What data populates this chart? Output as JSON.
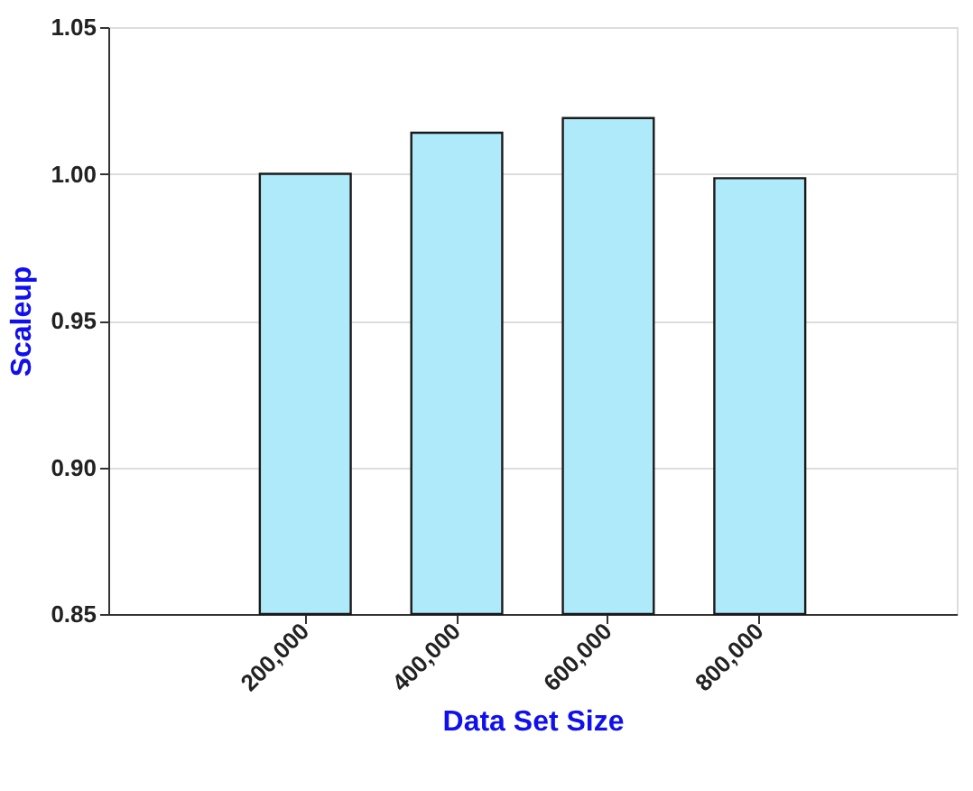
{
  "chart_data": {
    "type": "bar",
    "xlabel": "Data Set Size",
    "ylabel": "Scaleup",
    "categories": [
      "200,000",
      "400,000",
      "600,000",
      "800,000"
    ],
    "values": [
      1.0,
      1.014,
      1.019,
      0.9985
    ],
    "color": "#aeeafa",
    "ylim": [
      0.85,
      1.05
    ],
    "yticks": [
      {
        "value": 0.85,
        "label": "0.85"
      },
      {
        "value": 0.9,
        "label": "0.90"
      },
      {
        "value": 0.95,
        "label": "0.95"
      },
      {
        "value": 1.0,
        "label": "1.00"
      },
      {
        "value": 1.05,
        "label": "1.05"
      }
    ],
    "grid": "y"
  }
}
